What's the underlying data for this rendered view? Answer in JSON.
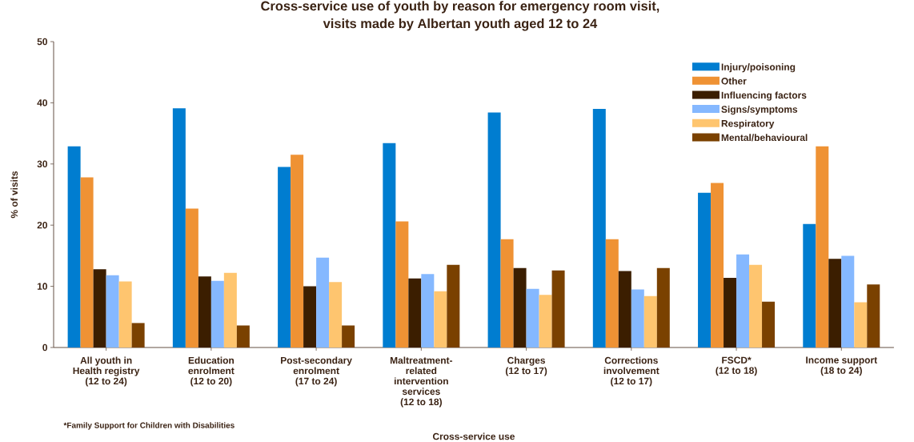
{
  "chart_data": {
    "type": "bar",
    "title": "Cross-service use of youth by reason for emergency room visit,\nvisits made by Albertan youth aged 12 to 24",
    "xlabel": "Cross-service use",
    "ylabel": "% of visits",
    "categories": [
      "All youth in\nHealth registry\n(12 to 24)",
      "Education\nenrolment\n(12 to 20)",
      "Post-secondary\nenrolment\n(17 to 24)",
      "Maltreatment-\nrelated\nintervention\nservices\n(12 to 18)",
      "Charges\n(12 to 17)",
      "Corrections\ninvolvement\n(12 to 17)",
      "FSCD*\n(12 to 18)",
      "Income support\n(18 to 24)"
    ],
    "series": [
      {
        "name": "Injury/poisoning",
        "color": "#007dd0",
        "values": [
          32.9,
          39.1,
          29.5,
          33.4,
          38.4,
          39.0,
          25.3,
          20.2
        ]
      },
      {
        "name": "Other",
        "color": "#ef9234",
        "values": [
          27.8,
          22.7,
          31.5,
          20.6,
          17.7,
          17.7,
          26.9,
          32.9
        ]
      },
      {
        "name": "Influencing factors",
        "color": "#3b1e00",
        "values": [
          12.8,
          11.6,
          10.0,
          11.3,
          13.0,
          12.5,
          11.4,
          14.5
        ]
      },
      {
        "name": "Signs/symptoms",
        "color": "#85b8ff",
        "values": [
          11.8,
          10.9,
          14.7,
          12.0,
          9.6,
          9.5,
          15.2,
          15.0
        ]
      },
      {
        "name": "Respiratory",
        "color": "#fec56f",
        "values": [
          10.8,
          12.2,
          10.7,
          9.2,
          8.6,
          8.4,
          13.5,
          7.4
        ]
      },
      {
        "name": "Mental/behavioural",
        "color": "#7a4100",
        "values": [
          4.0,
          3.6,
          3.6,
          13.5,
          12.6,
          13.0,
          7.5,
          10.3
        ]
      }
    ],
    "ylim": [
      0,
      50
    ],
    "yticks": [
      0,
      10,
      20,
      30,
      40,
      50
    ],
    "legend": "top right",
    "annotations": [
      "*Family Support for Children with Disabilities"
    ]
  }
}
